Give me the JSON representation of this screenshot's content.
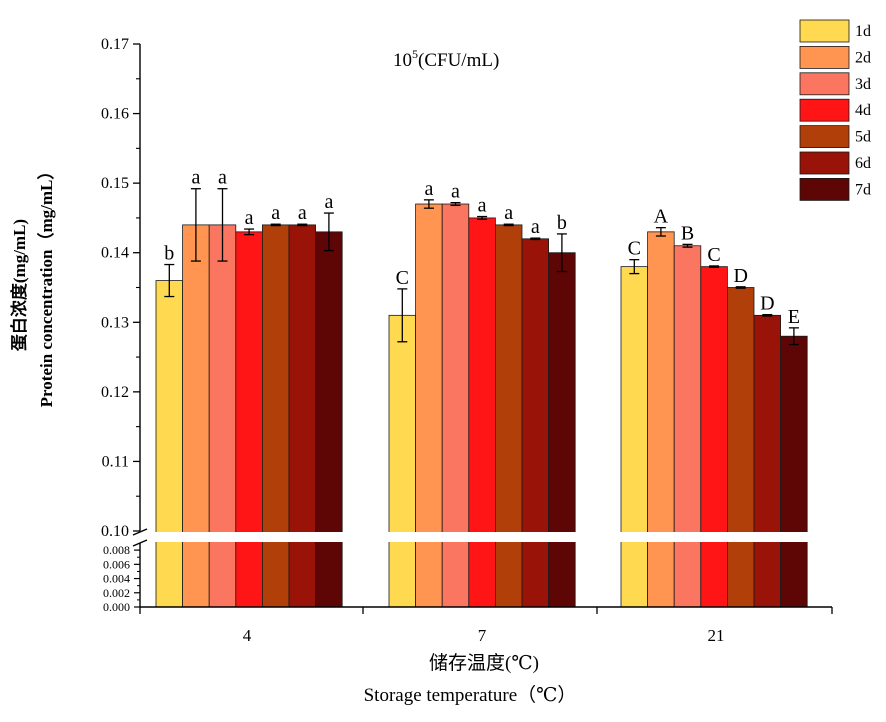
{
  "chart_data": {
    "type": "bar",
    "title": "10",
    "title_sup": "5",
    "title_suffix": "(CFU/mL)",
    "ylabel_cn": "蛋白浓度(mg/mL)",
    "ylabel_en": "Protein concentration（mg/mL）",
    "xlabel_cn": "储存温度(℃)",
    "xlabel_en": "Storage temperature（℃）",
    "categories": [
      "4",
      "7",
      "21"
    ],
    "axis_break": true,
    "y_lower": {
      "range": [
        0,
        0.009
      ],
      "ticks": [
        "0.000",
        "0.002",
        "0.004",
        "0.006",
        "0.008"
      ],
      "tick_values": [
        0,
        0.002,
        0.004,
        0.006,
        0.008
      ]
    },
    "y_upper": {
      "range": [
        0.1,
        0.17
      ],
      "ticks": [
        "0.10",
        "0.11",
        "0.12",
        "0.13",
        "0.14",
        "0.15",
        "0.16",
        "0.17"
      ],
      "tick_values": [
        0.1,
        0.11,
        0.12,
        0.13,
        0.14,
        0.15,
        0.16,
        0.17
      ]
    },
    "series": [
      {
        "name": "1d",
        "color": "#FFD94F",
        "values": [
          0.136,
          0.131,
          0.138
        ],
        "errors": [
          0.0023,
          0.0038,
          0.001
        ],
        "labels": [
          "b",
          "C",
          "C"
        ]
      },
      {
        "name": "2d",
        "color": "#FF9550",
        "values": [
          0.144,
          0.147,
          0.143
        ],
        "errors": [
          0.0052,
          0.0006,
          0.0006
        ],
        "labels": [
          "a",
          "a",
          "A"
        ]
      },
      {
        "name": "3d",
        "color": "#FA7660",
        "values": [
          0.144,
          0.147,
          0.141
        ],
        "errors": [
          0.0052,
          0.0002,
          0.0002
        ],
        "labels": [
          "a",
          "a",
          "B"
        ]
      },
      {
        "name": "4d",
        "color": "#FF1515",
        "values": [
          0.143,
          0.145,
          0.138
        ],
        "errors": [
          0.0004,
          0.0002,
          0.0001
        ],
        "labels": [
          "a",
          "a",
          "C"
        ]
      },
      {
        "name": "5d",
        "color": "#B03F0A",
        "values": [
          0.144,
          0.144,
          0.135
        ],
        "errors": [
          0.0001,
          0.0001,
          0.0001
        ],
        "labels": [
          "a",
          "a",
          "D"
        ]
      },
      {
        "name": "6d",
        "color": "#9A1308",
        "values": [
          0.144,
          0.142,
          0.131
        ],
        "errors": [
          0.0001,
          0.0001,
          0.0001
        ],
        "labels": [
          "a",
          "a",
          "D"
        ]
      },
      {
        "name": "7d",
        "color": "#5E0505",
        "values": [
          0.143,
          0.14,
          0.128
        ],
        "errors": [
          0.0027,
          0.0027,
          0.0012
        ],
        "labels": [
          "a",
          "b",
          "E"
        ]
      }
    ],
    "legend_position": "top-right",
    "grid": false
  }
}
